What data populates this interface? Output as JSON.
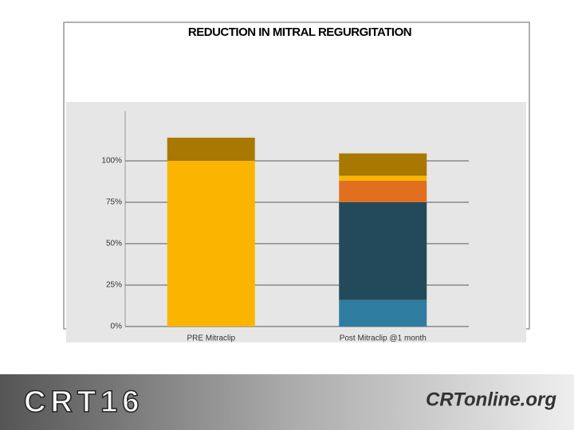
{
  "chart_data": {
    "type": "stacked_bar",
    "title": "REDUCTION IN MITRAL REGURGITATION",
    "categories": [
      "PRE Mitraclip",
      "Post Mitraclip @1 month"
    ],
    "series": [
      {
        "color": "#2e7ca0",
        "values": [
          null,
          16
        ]
      },
      {
        "color": "#234a5a",
        "values": [
          null,
          59
        ]
      },
      {
        "color": "#e07020",
        "values": [
          null,
          13
        ]
      },
      {
        "color": "#fbb400",
        "values": [
          100,
          3
        ]
      },
      {
        "color": "#a87800",
        "values": [
          14,
          13.5
        ]
      }
    ],
    "ylim": [
      0,
      130
    ],
    "yticks": [
      {
        "value": 0,
        "label": "0%"
      },
      {
        "value": 25,
        "label": "25%"
      },
      {
        "value": 50,
        "label": "50%"
      },
      {
        "value": 75,
        "label": "75%"
      },
      {
        "value": 100,
        "label": "100%"
      }
    ],
    "grid": true
  },
  "footer": {
    "left_logo": "CRT16",
    "right_logo": "CRTonline.org"
  }
}
